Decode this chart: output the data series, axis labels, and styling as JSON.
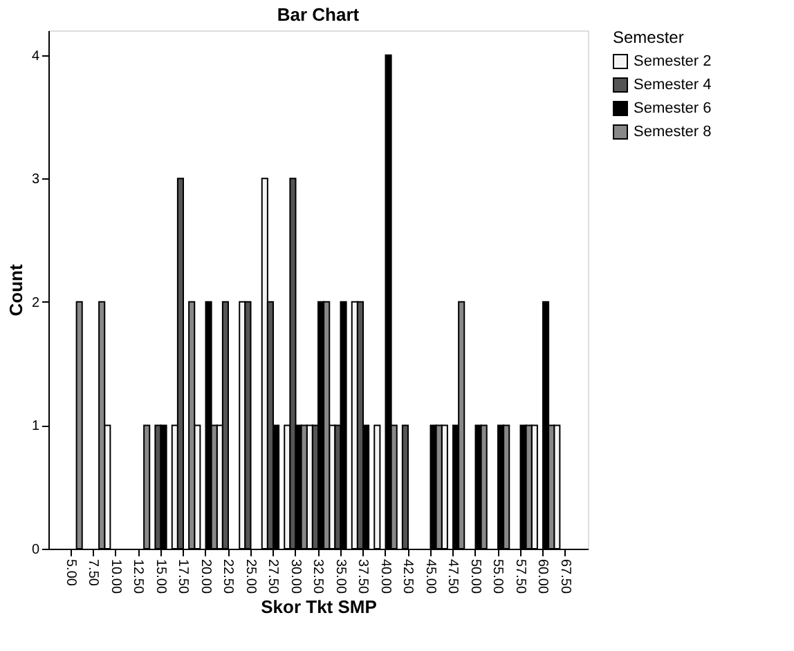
{
  "chart_data": {
    "type": "bar",
    "title": "Bar Chart",
    "xlabel": "Skor Tkt SMP",
    "ylabel": "Count",
    "legend_title": "Semester",
    "categories": [
      "5.00",
      "7.50",
      "10.00",
      "12.50",
      "15.00",
      "17.50",
      "20.00",
      "22.50",
      "25.00",
      "27.50",
      "30.00",
      "32.50",
      "35.00",
      "37.50",
      "40.00",
      "42.50",
      "45.00",
      "47.50",
      "50.00",
      "55.00",
      "57.50",
      "60.00",
      "67.50"
    ],
    "series": [
      {
        "name": "Semester 2",
        "color": "#f4f4f4",
        "values": [
          null,
          null,
          1,
          null,
          null,
          1,
          1,
          1,
          2,
          3,
          1,
          1,
          1,
          2,
          1,
          null,
          null,
          1,
          null,
          null,
          null,
          1,
          1
        ]
      },
      {
        "name": "Semester 4",
        "color": "#555555",
        "values": [
          null,
          null,
          null,
          null,
          1,
          3,
          null,
          2,
          2,
          2,
          3,
          1,
          1,
          2,
          null,
          1,
          null,
          null,
          null,
          null,
          null,
          null,
          null
        ]
      },
      {
        "name": "Semester 6",
        "color": "#000000",
        "values": [
          null,
          null,
          null,
          null,
          1,
          null,
          2,
          null,
          null,
          1,
          1,
          2,
          2,
          1,
          4,
          null,
          1,
          1,
          1,
          1,
          1,
          2,
          null
        ]
      },
      {
        "name": "Semester 8",
        "color": "#888888",
        "values": [
          2,
          2,
          null,
          1,
          null,
          2,
          1,
          null,
          null,
          null,
          1,
          2,
          null,
          null,
          1,
          null,
          1,
          2,
          1,
          1,
          1,
          1,
          null
        ]
      }
    ],
    "ylim": [
      0,
      4.2
    ],
    "yticks": [
      0,
      1,
      2,
      3,
      4
    ],
    "grid": false,
    "legend": "top right"
  }
}
